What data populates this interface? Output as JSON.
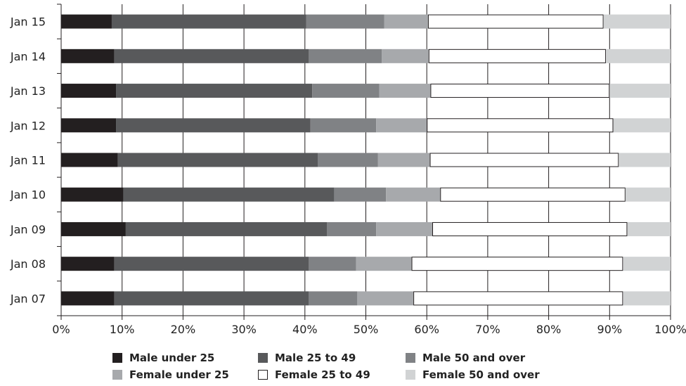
{
  "chart_data": {
    "type": "bar",
    "orientation": "horizontal",
    "stacked": true,
    "normalized": true,
    "categories": [
      "Jan 15",
      "Jan 14",
      "Jan 13",
      "Jan 12",
      "Jan 11",
      "Jan 10",
      "Jan 09",
      "Jan 08",
      "Jan 07"
    ],
    "series": [
      {
        "name": "Male under 25",
        "color": "#231f20",
        "border": "#231f20",
        "values": [
          8.3,
          8.7,
          9.0,
          9.0,
          9.3,
          10.2,
          10.6,
          8.7,
          8.7
        ]
      },
      {
        "name": "Male 25 to 49",
        "color": "#58595b",
        "border": "#58595b",
        "values": [
          31.9,
          31.9,
          32.2,
          31.9,
          32.8,
          34.6,
          33.0,
          31.9,
          31.9
        ]
      },
      {
        "name": "Male 50 and over",
        "color": "#808285",
        "border": "#808285",
        "values": [
          12.8,
          12.0,
          11.0,
          10.8,
          9.9,
          8.5,
          8.1,
          7.8,
          8.0
        ]
      },
      {
        "name": "Female under 25",
        "color": "#a7a9ac",
        "border": "#a7a9ac",
        "values": [
          7.2,
          7.7,
          8.4,
          8.3,
          8.5,
          8.9,
          9.2,
          9.1,
          9.2
        ]
      },
      {
        "name": "Female 25 to 49",
        "color": "#ffffff",
        "border": "#231f20",
        "values": [
          28.8,
          29.1,
          29.4,
          30.6,
          31.0,
          30.4,
          32.0,
          34.7,
          34.4
        ]
      },
      {
        "name": "Female  50 and over",
        "color": "#d1d3d4",
        "border": "#d1d3d4",
        "values": [
          11.0,
          10.6,
          10.0,
          9.4,
          8.5,
          7.4,
          7.1,
          7.8,
          7.8
        ]
      }
    ],
    "xlim": [
      0,
      100
    ],
    "xticks": [
      "0%",
      "10%",
      "20%",
      "30%",
      "40%",
      "50%",
      "60%",
      "70%",
      "80%",
      "90%",
      "100%"
    ],
    "grid": true,
    "legend_position": "bottom"
  }
}
